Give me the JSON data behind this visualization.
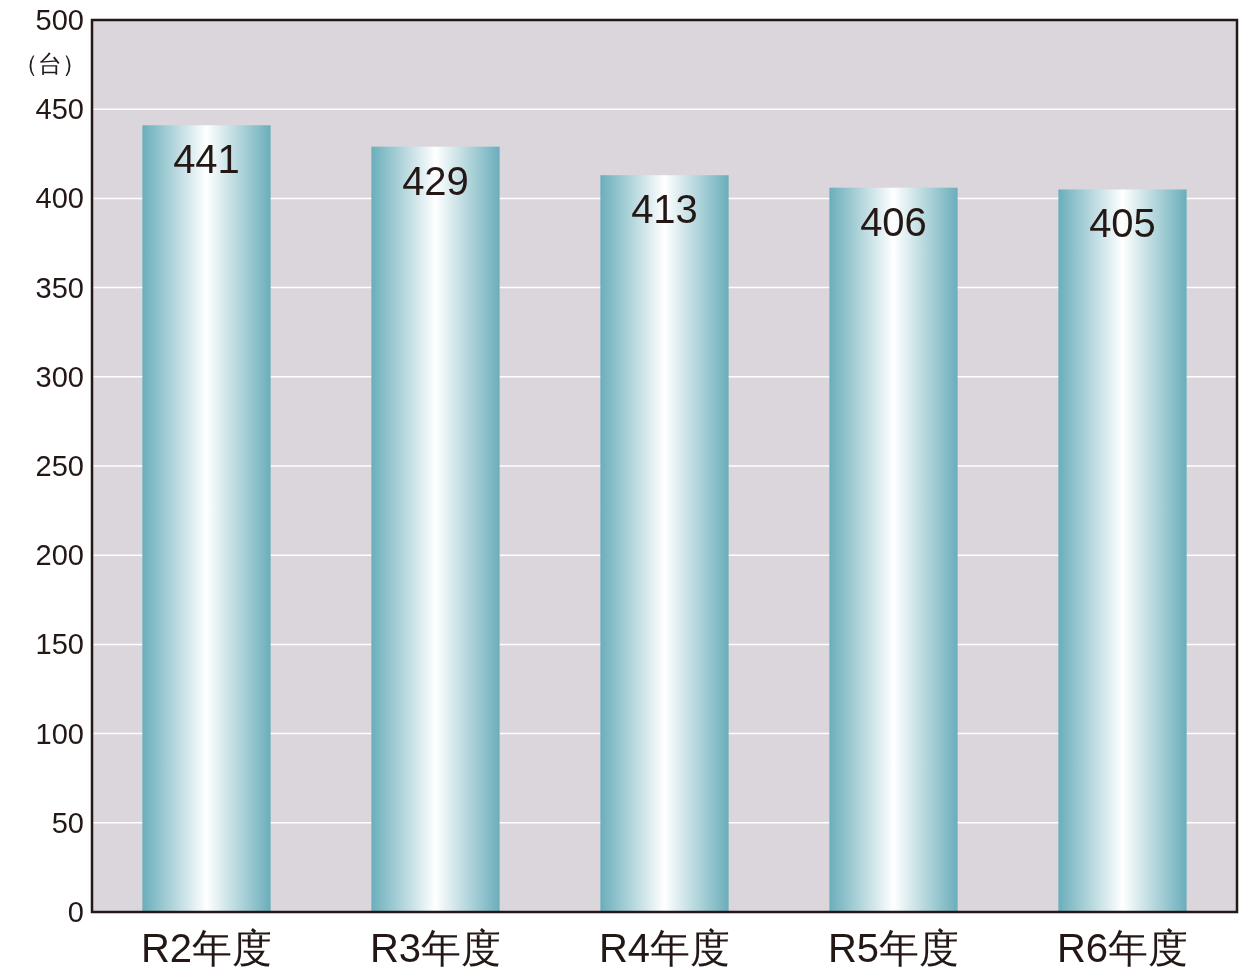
{
  "chart_data": {
    "type": "bar",
    "ylabel": "（台）",
    "categories": [
      "R2年度",
      "R3年度",
      "R4年度",
      "R5年度",
      "R6年度"
    ],
    "values": [
      441,
      429,
      413,
      406,
      405
    ],
    "color": "#6aaebb",
    "ylim": [
      0,
      500
    ],
    "yticks": [
      0,
      50,
      100,
      150,
      200,
      250,
      300,
      350,
      400,
      450,
      500
    ],
    "grid": "y",
    "data_labels": true
  }
}
